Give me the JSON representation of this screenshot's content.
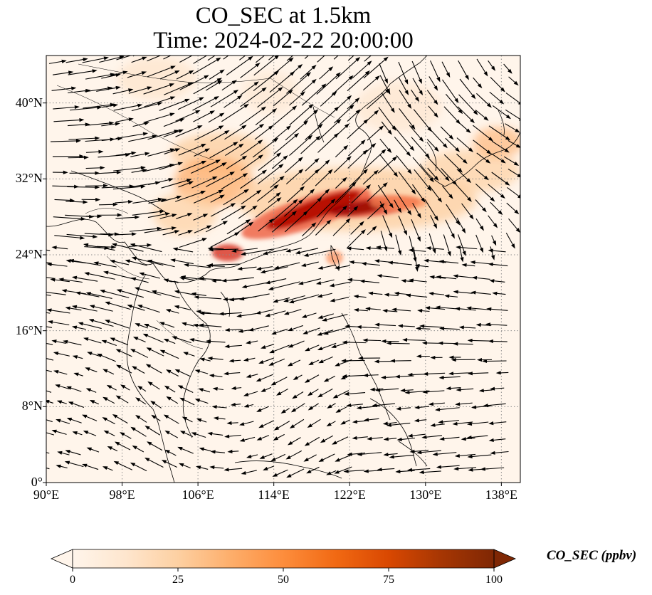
{
  "title": {
    "line1": "CO_SEC at 1.5km",
    "line2": "Time: 2024-02-22 20:00:00"
  },
  "axes": {
    "lat_ticks": [
      "40°N",
      "32°N",
      "24°N",
      "16°N",
      "8°N",
      "0°"
    ],
    "lat_values": [
      40,
      32,
      24,
      16,
      8,
      0
    ],
    "lon_ticks": [
      "90°E",
      "98°E",
      "106°E",
      "114°E",
      "122°E",
      "130°E",
      "138°E"
    ],
    "lon_values": [
      90,
      98,
      106,
      114,
      122,
      130,
      138
    ],
    "lat_range": [
      0,
      45
    ],
    "lon_range": [
      90,
      140
    ]
  },
  "colorbar": {
    "label": "CO_SEC (ppbv)",
    "ticks": [
      "0",
      "25",
      "50",
      "75",
      "100"
    ],
    "tick_values": [
      0,
      25,
      50,
      75,
      100
    ],
    "range": [
      0,
      100
    ],
    "extend": "both",
    "colormap": [
      "#fff5eb",
      "#fee6ce",
      "#fdd0a2",
      "#fdae6b",
      "#fd8d3c",
      "#f16913",
      "#d94801",
      "#a63603",
      "#7f2704"
    ]
  },
  "colors": {
    "background": "#fff5eb",
    "grid": "#8c8c8c",
    "coast": "#000000",
    "vectors": "#000000"
  }
}
